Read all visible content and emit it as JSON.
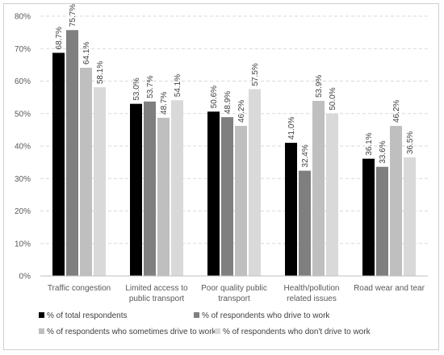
{
  "chart_data": {
    "type": "bar",
    "title": "",
    "xlabel": "",
    "ylabel": "",
    "ylim": [
      0,
      80
    ],
    "yticks": [
      "0%",
      "10%",
      "20%",
      "30%",
      "40%",
      "50%",
      "60%",
      "70%",
      "80%"
    ],
    "grid": true,
    "legend_position": "bottom",
    "categories": [
      [
        "Traffic congestion"
      ],
      [
        "Limited access to",
        "public transport"
      ],
      [
        "Poor quality public",
        "transport"
      ],
      [
        "Health/pollution",
        "related issues"
      ],
      [
        "Road wear and tear"
      ]
    ],
    "series": [
      {
        "name": "% of total respondents",
        "color": "#000000",
        "values": [
          68.7,
          53.0,
          50.6,
          41.0,
          36.1
        ],
        "labels": [
          "68.7%",
          "53.0%",
          "50.6%",
          "41.0%",
          "36.1%"
        ]
      },
      {
        "name": "% of respondents who drive to work",
        "color": "#7f7f7f",
        "values": [
          75.7,
          53.7,
          48.9,
          32.4,
          33.6
        ],
        "labels": [
          "75.7%",
          "53.7%",
          "48.9%",
          "32.4%",
          "33.6%"
        ]
      },
      {
        "name": "% of respondents who sometimes drive to work",
        "color": "#bfbfbf",
        "values": [
          64.1,
          48.7,
          46.2,
          53.9,
          46.2
        ],
        "labels": [
          "64.1%",
          "48.7%",
          "46.2%",
          "53.9%",
          "46.2%"
        ]
      },
      {
        "name": "% of respondents who don't drive to work",
        "color": "#d9d9d9",
        "values": [
          58.1,
          54.1,
          57.5,
          50.0,
          36.5
        ],
        "labels": [
          "58.1%",
          "54.1%",
          "57.5%",
          "50.0%",
          "36.5%"
        ]
      }
    ]
  }
}
